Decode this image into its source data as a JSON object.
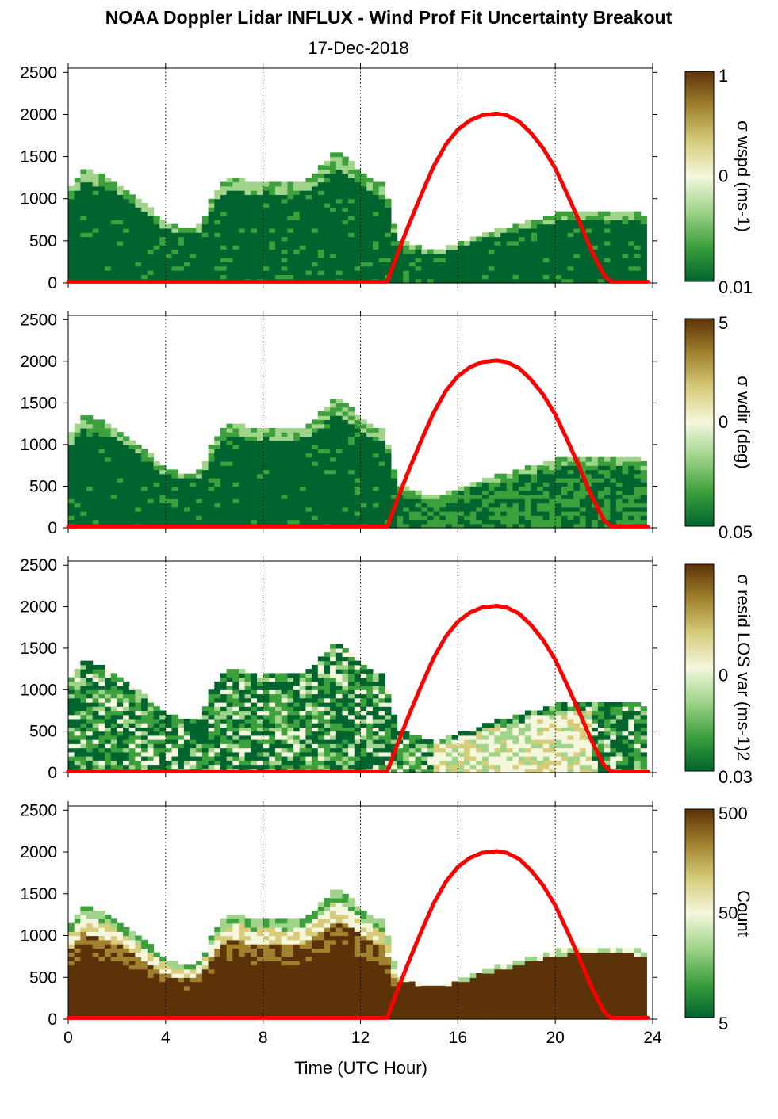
{
  "title": "NOAA Doppler Lidar INFLUX - Wind Prof Fit Uncertainty Breakout",
  "subtitle": "17-Dec-2018",
  "chart_data": {
    "type": "heatmap",
    "panels_count": 4,
    "xlabel": "Time (UTC Hour)",
    "xlim": [
      0,
      24
    ],
    "ylim": [
      0,
      2550
    ],
    "x_ticks": [
      0,
      4,
      8,
      12,
      16,
      20,
      24
    ],
    "y_ticks": [
      0,
      500,
      1000,
      1500,
      2000,
      2500
    ],
    "vertical_gridlines": "dotted at 4, 8, 12, 16, 20, 24",
    "colormap": [
      "#00642f",
      "#3ca03c",
      "#9fd48a",
      "#f4f7dd",
      "#d6cc7a",
      "#a0822e",
      "#5c3208"
    ],
    "panels": [
      {
        "colorbar_label": "σ wspd (ms-1)",
        "colorbar_ticks": [
          "1",
          "0",
          "0.01"
        ],
        "colorbar_scale": "log"
      },
      {
        "colorbar_label": "σ wdir (deg)",
        "colorbar_ticks": [
          "5",
          "0",
          "0.05"
        ],
        "colorbar_scale": "log"
      },
      {
        "colorbar_label": "σ resid LOS var (ms-1)2",
        "colorbar_ticks": [
          "0",
          "0.03"
        ],
        "colorbar_scale": "log"
      },
      {
        "colorbar_label": "Count",
        "colorbar_ticks": [
          "500",
          "50",
          "5"
        ],
        "colorbar_scale": "log"
      }
    ],
    "overlay_series": {
      "name": "",
      "color": "#ff0000",
      "x": [
        0,
        13.1,
        13.5,
        14,
        14.5,
        15,
        15.5,
        16,
        16.5,
        17,
        17.6,
        18,
        18.5,
        19,
        19.5,
        20,
        20.5,
        21,
        21.5,
        22,
        22.3,
        22.6,
        23.8
      ],
      "y": [
        0,
        0,
        330,
        700,
        1050,
        1380,
        1640,
        1820,
        1930,
        1990,
        2010,
        1990,
        1920,
        1780,
        1600,
        1360,
        1050,
        720,
        380,
        90,
        0,
        0,
        0
      ]
    },
    "data_envelope": {
      "x": [
        0,
        0.3,
        0.5,
        1,
        1.5,
        2,
        2.5,
        3,
        3.5,
        4,
        4.5,
        5,
        5.5,
        6,
        6.5,
        7,
        7.5,
        8,
        8.5,
        9,
        9.5,
        10,
        10.5,
        11,
        11.5,
        12,
        12.5,
        13,
        13.5,
        14,
        14.5,
        15,
        15.5,
        16,
        16.5,
        17,
        17.5,
        18,
        18.5,
        19,
        19.5,
        20,
        20.5,
        21,
        21.5,
        22,
        22.5,
        23,
        23.5,
        23.8
      ],
      "top": [
        1100,
        1150,
        1350,
        1300,
        1250,
        1180,
        1050,
        950,
        820,
        700,
        650,
        620,
        700,
        1050,
        1200,
        1250,
        1150,
        1200,
        1180,
        1150,
        1180,
        1250,
        1400,
        1550,
        1450,
        1300,
        1200,
        1150,
        500,
        450,
        400,
        380,
        400,
        450,
        500,
        560,
        600,
        640,
        680,
        720,
        760,
        800,
        820,
        830,
        840,
        850,
        840,
        830,
        800,
        760
      ]
    }
  }
}
